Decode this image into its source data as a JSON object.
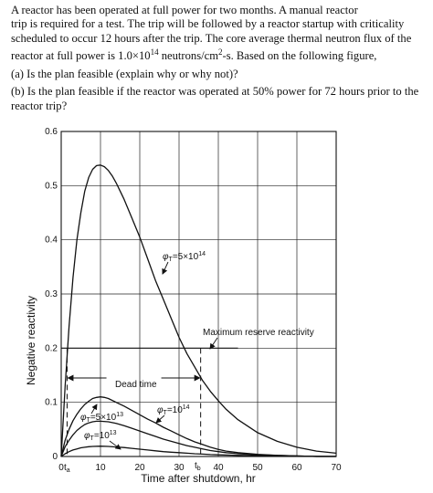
{
  "problem": {
    "intro_lines": [
      "A reactor has been operated at full power for two months. A manual reactor",
      "trip is required for a test. The trip will be followed by a reactor startup with criticality",
      "scheduled to occur 12 hours after the trip. The core average thermal neutron flux of the"
    ],
    "flux_line_before": "reactor at full power is 1.0×10",
    "flux_exponent": "14",
    "flux_line_units": " neutrons/cm",
    "flux_units_exponent": "2",
    "flux_line_after": "-s. Based on the following figure,",
    "question_a": "(a) Is the plan feasible (explain why or why not)?",
    "question_b_lines": [
      "(b) Is the plan feasible if the reactor was operated at 50% power for 72 hours prior to the",
      "reactor trip?"
    ]
  },
  "chart_data": {
    "type": "line",
    "xlabel": "Time after shutdown, hr",
    "ylabel": "Negative reactivity",
    "xlim": [
      0,
      70
    ],
    "ylim": [
      0,
      0.6
    ],
    "x_ticks": [
      "0",
      "10",
      "20",
      "30",
      "40",
      "50",
      "60",
      "70"
    ],
    "y_ticks": [
      "0",
      "0.1",
      "0.2",
      "0.3",
      "0.4",
      "0.5",
      "0.6"
    ],
    "grid": true,
    "series": [
      {
        "name": "φT=5×10¹⁴",
        "x": [
          0,
          1,
          2,
          3,
          4,
          5,
          6,
          7,
          8,
          9,
          10,
          11,
          12,
          13,
          14,
          16,
          18,
          20,
          22,
          24,
          26,
          28,
          30,
          32,
          34,
          36,
          38,
          40,
          42,
          45,
          50,
          55,
          60,
          65,
          70
        ],
        "y": [
          0,
          0.13,
          0.24,
          0.33,
          0.4,
          0.45,
          0.49,
          0.515,
          0.53,
          0.537,
          0.538,
          0.535,
          0.528,
          0.518,
          0.505,
          0.475,
          0.44,
          0.405,
          0.365,
          0.325,
          0.29,
          0.255,
          0.22,
          0.19,
          0.165,
          0.14,
          0.12,
          0.103,
          0.087,
          0.068,
          0.044,
          0.028,
          0.017,
          0.01,
          0.006
        ]
      },
      {
        "name": "φT=10¹⁴",
        "x": [
          0,
          1,
          2,
          3,
          4,
          5,
          6,
          7,
          8,
          9,
          10,
          11,
          12,
          14,
          16,
          18,
          20,
          22,
          24,
          26,
          28,
          30,
          32,
          34,
          36,
          38,
          40,
          42,
          45,
          50,
          55,
          60,
          65,
          70
        ],
        "y": [
          0,
          0.03,
          0.05,
          0.066,
          0.078,
          0.088,
          0.096,
          0.102,
          0.107,
          0.109,
          0.11,
          0.109,
          0.107,
          0.1,
          0.093,
          0.085,
          0.077,
          0.069,
          0.062,
          0.054,
          0.047,
          0.04,
          0.033,
          0.027,
          0.022,
          0.017,
          0.013,
          0.01,
          0.007,
          0.004,
          0.002,
          0.001,
          0.0,
          0.0
        ]
      },
      {
        "name": "φT=5×10¹³",
        "x": [
          0,
          1,
          2,
          3,
          4,
          5,
          6,
          7,
          8,
          9,
          10,
          12,
          14,
          16,
          18,
          20,
          22,
          24,
          26,
          28,
          30,
          32,
          34,
          36,
          38,
          40,
          42,
          45,
          50,
          55,
          60,
          65,
          70
        ],
        "y": [
          0,
          0.018,
          0.03,
          0.04,
          0.048,
          0.054,
          0.059,
          0.062,
          0.064,
          0.065,
          0.065,
          0.064,
          0.061,
          0.057,
          0.052,
          0.047,
          0.042,
          0.037,
          0.032,
          0.028,
          0.024,
          0.02,
          0.017,
          0.014,
          0.011,
          0.009,
          0.007,
          0.005,
          0.003,
          0.002,
          0.001,
          0.0,
          0.0
        ]
      },
      {
        "name": "φT=10¹³",
        "x": [
          0,
          1,
          2,
          3,
          4,
          5,
          6,
          7,
          8,
          10,
          12,
          14,
          16,
          18,
          20,
          22,
          24,
          26,
          28,
          30,
          32,
          34,
          36,
          38,
          40,
          45,
          50,
          55,
          60,
          65,
          70
        ],
        "y": [
          0,
          0.005,
          0.009,
          0.012,
          0.014,
          0.016,
          0.017,
          0.018,
          0.0185,
          0.019,
          0.0185,
          0.0175,
          0.0165,
          0.015,
          0.0135,
          0.012,
          0.0105,
          0.009,
          0.008,
          0.007,
          0.006,
          0.005,
          0.0043,
          0.0036,
          0.003,
          0.002,
          0.0013,
          0.0008,
          0.0005,
          0.0003,
          0.0002
        ]
      }
    ],
    "reference_line": {
      "y": 0.2,
      "x": [
        0,
        45
      ],
      "label": "Maximum reserve reactivity"
    },
    "dead_time": {
      "label": "Dead time",
      "t_a": 1.5,
      "t_b": 35.5,
      "y": 0.145
    },
    "x_markers": {
      "t_a": "t",
      "t_a_sub": "a",
      "t_b": "t",
      "t_b_sub": "b"
    },
    "annotations": {
      "phi_symbol": "φ",
      "phi_sub": "T",
      "label_5e14": "=5×10",
      "label_5e14_exp": "14",
      "label_1e14": "=10",
      "label_1e14_exp": "14",
      "label_5e13": "=5×10",
      "label_5e13_exp": "13",
      "label_1e13": "=10",
      "label_1e13_exp": "13"
    }
  }
}
